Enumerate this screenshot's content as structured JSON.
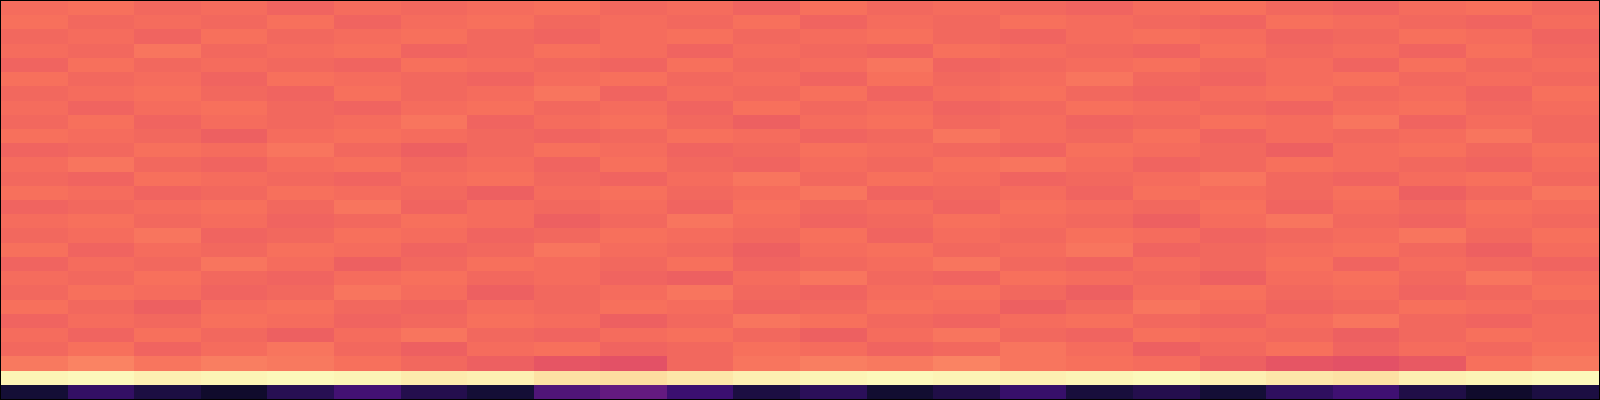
{
  "chart_data": {
    "type": "heatmap",
    "tick_labels": false,
    "xlim": [
      -0.5,
      23.5
    ],
    "ylim": [
      -0.5,
      27.5
    ],
    "zlim": [
      0,
      1
    ],
    "cells": [
      [
        0.1,
        0.18,
        0.12,
        0.08,
        0.15,
        0.22,
        0.14,
        0.1,
        0.25,
        0.3,
        0.2,
        0.12,
        0.16,
        0.09,
        0.13,
        0.19,
        0.11,
        0.14,
        0.1,
        0.17,
        0.21,
        0.13,
        0.08,
        0.12
      ],
      [
        0.98,
        0.99,
        0.97,
        0.98,
        0.99,
        0.98,
        0.96,
        0.97,
        0.94,
        0.93,
        0.95,
        0.97,
        0.98,
        0.99,
        0.98,
        0.97,
        0.98,
        0.99,
        0.97,
        0.95,
        0.94,
        0.97,
        0.98,
        0.99
      ],
      [
        0.72,
        0.74,
        0.71,
        0.73,
        0.72,
        0.7,
        0.68,
        0.66,
        0.63,
        0.62,
        0.68,
        0.71,
        0.73,
        0.72,
        0.74,
        0.71,
        0.7,
        0.69,
        0.66,
        0.63,
        0.62,
        0.64,
        0.7,
        0.72
      ],
      [
        0.68,
        0.7,
        0.67,
        0.69,
        0.71,
        0.68,
        0.66,
        0.69,
        0.7,
        0.67,
        0.68,
        0.7,
        0.69,
        0.67,
        0.68,
        0.71,
        0.69,
        0.66,
        0.68,
        0.7,
        0.67,
        0.69,
        0.68,
        0.7
      ],
      [
        0.69,
        0.67,
        0.7,
        0.68,
        0.66,
        0.69,
        0.71,
        0.68,
        0.67,
        0.69,
        0.7,
        0.68,
        0.66,
        0.69,
        0.71,
        0.68,
        0.67,
        0.7,
        0.69,
        0.68,
        0.66,
        0.68,
        0.7,
        0.69
      ],
      [
        0.67,
        0.69,
        0.68,
        0.7,
        0.69,
        0.67,
        0.68,
        0.7,
        0.69,
        0.66,
        0.68,
        0.71,
        0.7,
        0.68,
        0.67,
        0.69,
        0.7,
        0.68,
        0.67,
        0.69,
        0.71,
        0.68,
        0.67,
        0.69
      ],
      [
        0.7,
        0.68,
        0.66,
        0.69,
        0.7,
        0.68,
        0.67,
        0.69,
        0.68,
        0.7,
        0.69,
        0.67,
        0.68,
        0.7,
        0.69,
        0.66,
        0.68,
        0.71,
        0.69,
        0.67,
        0.68,
        0.7,
        0.69,
        0.68
      ],
      [
        0.68,
        0.7,
        0.69,
        0.67,
        0.68,
        0.71,
        0.69,
        0.66,
        0.68,
        0.69,
        0.71,
        0.68,
        0.67,
        0.69,
        0.7,
        0.68,
        0.66,
        0.69,
        0.7,
        0.68,
        0.69,
        0.67,
        0.68,
        0.7
      ],
      [
        0.69,
        0.68,
        0.7,
        0.68,
        0.67,
        0.69,
        0.7,
        0.68,
        0.69,
        0.67,
        0.66,
        0.69,
        0.71,
        0.68,
        0.67,
        0.7,
        0.69,
        0.68,
        0.66,
        0.69,
        0.7,
        0.68,
        0.71,
        0.69
      ],
      [
        0.67,
        0.69,
        0.68,
        0.71,
        0.69,
        0.66,
        0.68,
        0.7,
        0.69,
        0.68,
        0.7,
        0.67,
        0.68,
        0.69,
        0.71,
        0.68,
        0.67,
        0.69,
        0.68,
        0.7,
        0.67,
        0.69,
        0.68,
        0.67
      ],
      [
        0.7,
        0.67,
        0.69,
        0.68,
        0.7,
        0.69,
        0.67,
        0.68,
        0.71,
        0.69,
        0.68,
        0.66,
        0.69,
        0.7,
        0.68,
        0.69,
        0.71,
        0.67,
        0.68,
        0.69,
        0.7,
        0.68,
        0.66,
        0.69
      ],
      [
        0.68,
        0.69,
        0.71,
        0.67,
        0.68,
        0.7,
        0.69,
        0.67,
        0.68,
        0.7,
        0.69,
        0.68,
        0.7,
        0.67,
        0.69,
        0.68,
        0.7,
        0.69,
        0.67,
        0.68,
        0.69,
        0.71,
        0.68,
        0.7
      ],
      [
        0.69,
        0.7,
        0.68,
        0.69,
        0.67,
        0.68,
        0.7,
        0.69,
        0.66,
        0.68,
        0.71,
        0.69,
        0.67,
        0.68,
        0.7,
        0.69,
        0.68,
        0.66,
        0.69,
        0.71,
        0.68,
        0.67,
        0.69,
        0.68
      ],
      [
        0.67,
        0.68,
        0.69,
        0.7,
        0.68,
        0.71,
        0.67,
        0.69,
        0.68,
        0.69,
        0.67,
        0.7,
        0.68,
        0.69,
        0.67,
        0.7,
        0.69,
        0.68,
        0.7,
        0.67,
        0.69,
        0.68,
        0.7,
        0.69
      ],
      [
        0.7,
        0.69,
        0.67,
        0.68,
        0.7,
        0.69,
        0.68,
        0.66,
        0.69,
        0.7,
        0.68,
        0.69,
        0.71,
        0.67,
        0.68,
        0.69,
        0.67,
        0.7,
        0.69,
        0.68,
        0.7,
        0.66,
        0.68,
        0.71
      ],
      [
        0.68,
        0.67,
        0.7,
        0.69,
        0.68,
        0.67,
        0.69,
        0.7,
        0.68,
        0.67,
        0.69,
        0.71,
        0.68,
        0.7,
        0.69,
        0.67,
        0.68,
        0.69,
        0.71,
        0.68,
        0.67,
        0.69,
        0.7,
        0.68
      ],
      [
        0.69,
        0.71,
        0.68,
        0.67,
        0.69,
        0.7,
        0.68,
        0.69,
        0.67,
        0.7,
        0.68,
        0.67,
        0.69,
        0.68,
        0.7,
        0.71,
        0.69,
        0.67,
        0.68,
        0.7,
        0.69,
        0.68,
        0.67,
        0.69
      ],
      [
        0.67,
        0.68,
        0.7,
        0.69,
        0.71,
        0.68,
        0.66,
        0.68,
        0.7,
        0.69,
        0.67,
        0.68,
        0.7,
        0.69,
        0.68,
        0.67,
        0.7,
        0.69,
        0.68,
        0.66,
        0.69,
        0.7,
        0.68,
        0.7
      ],
      [
        0.7,
        0.69,
        0.68,
        0.66,
        0.69,
        0.7,
        0.69,
        0.68,
        0.67,
        0.68,
        0.7,
        0.69,
        0.67,
        0.68,
        0.71,
        0.69,
        0.68,
        0.7,
        0.67,
        0.69,
        0.68,
        0.69,
        0.71,
        0.68
      ],
      [
        0.68,
        0.7,
        0.67,
        0.69,
        0.68,
        0.69,
        0.71,
        0.67,
        0.69,
        0.7,
        0.68,
        0.66,
        0.69,
        0.7,
        0.68,
        0.69,
        0.67,
        0.68,
        0.7,
        0.69,
        0.71,
        0.67,
        0.69,
        0.68
      ],
      [
        0.69,
        0.67,
        0.69,
        0.7,
        0.68,
        0.67,
        0.69,
        0.7,
        0.68,
        0.69,
        0.67,
        0.7,
        0.68,
        0.69,
        0.67,
        0.68,
        0.7,
        0.69,
        0.68,
        0.67,
        0.69,
        0.7,
        0.68,
        0.69
      ],
      [
        0.68,
        0.69,
        0.7,
        0.68,
        0.67,
        0.7,
        0.68,
        0.69,
        0.71,
        0.67,
        0.69,
        0.68,
        0.7,
        0.67,
        0.69,
        0.7,
        0.68,
        0.67,
        0.69,
        0.7,
        0.68,
        0.69,
        0.67,
        0.7
      ],
      [
        0.7,
        0.68,
        0.69,
        0.67,
        0.7,
        0.69,
        0.68,
        0.67,
        0.69,
        0.7,
        0.68,
        0.69,
        0.67,
        0.7,
        0.68,
        0.69,
        0.71,
        0.68,
        0.67,
        0.69,
        0.7,
        0.68,
        0.69,
        0.68
      ],
      [
        0.67,
        0.7,
        0.68,
        0.69,
        0.68,
        0.67,
        0.7,
        0.69,
        0.68,
        0.67,
        0.7,
        0.68,
        0.69,
        0.71,
        0.67,
        0.68,
        0.69,
        0.7,
        0.68,
        0.69,
        0.67,
        0.7,
        0.68,
        0.69
      ],
      [
        0.69,
        0.68,
        0.71,
        0.68,
        0.69,
        0.7,
        0.67,
        0.68,
        0.7,
        0.69,
        0.67,
        0.69,
        0.68,
        0.67,
        0.7,
        0.69,
        0.68,
        0.67,
        0.7,
        0.68,
        0.69,
        0.67,
        0.7,
        0.68
      ],
      [
        0.68,
        0.69,
        0.67,
        0.7,
        0.68,
        0.69,
        0.7,
        0.68,
        0.67,
        0.69,
        0.7,
        0.68,
        0.69,
        0.7,
        0.68,
        0.67,
        0.69,
        0.7,
        0.69,
        0.67,
        0.68,
        0.7,
        0.69,
        0.67
      ],
      [
        0.7,
        0.68,
        0.69,
        0.68,
        0.7,
        0.67,
        0.69,
        0.7,
        0.68,
        0.69,
        0.68,
        0.7,
        0.67,
        0.69,
        0.68,
        0.7,
        0.69,
        0.68,
        0.67,
        0.7,
        0.69,
        0.68,
        0.67,
        0.69
      ],
      [
        0.69,
        0.7,
        0.68,
        0.69,
        0.67,
        0.69,
        0.68,
        0.69,
        0.7,
        0.68,
        0.69,
        0.67,
        0.7,
        0.68,
        0.69,
        0.68,
        0.67,
        0.69,
        0.7,
        0.68,
        0.67,
        0.69,
        0.7,
        0.68
      ]
    ]
  }
}
